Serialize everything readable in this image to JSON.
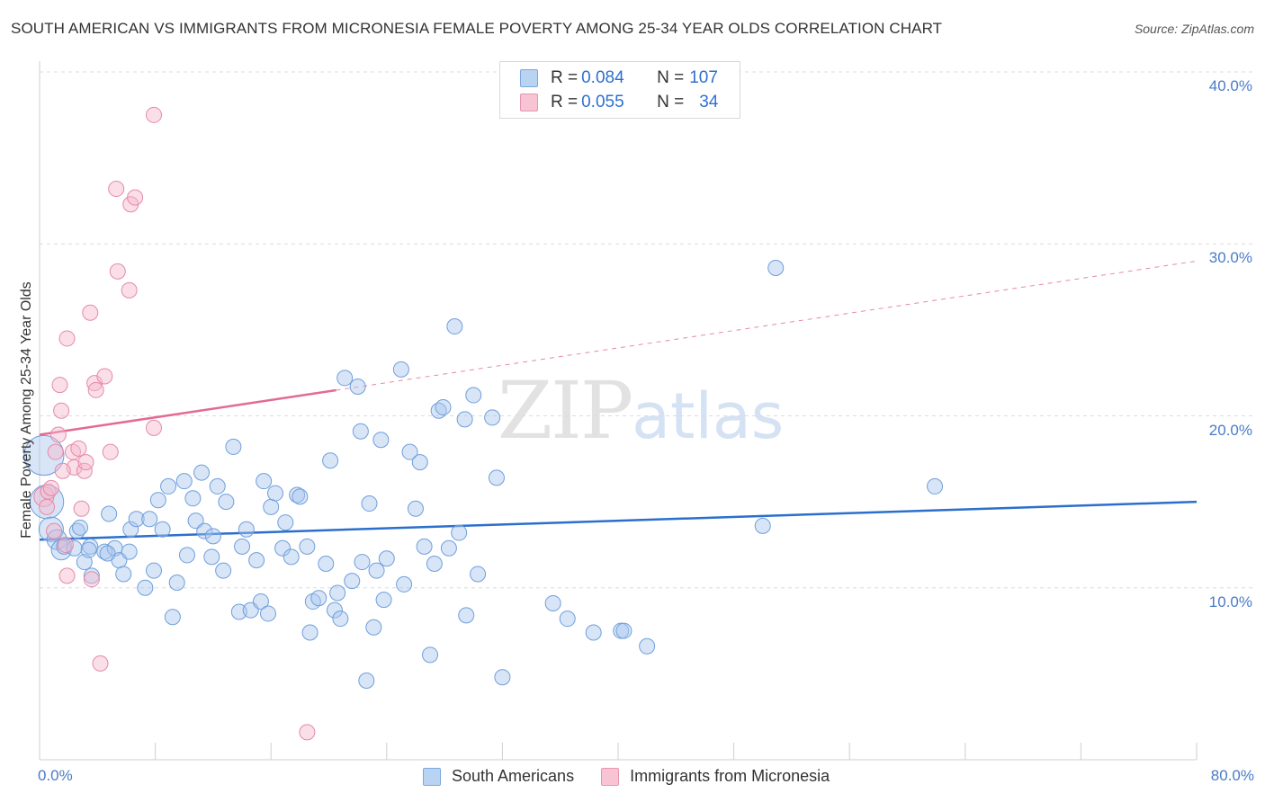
{
  "title": "SOUTH AMERICAN VS IMMIGRANTS FROM MICRONESIA FEMALE POVERTY AMONG 25-34 YEAR OLDS CORRELATION CHART",
  "source": "Source: ZipAtlas.com",
  "watermark": {
    "zip": "ZIP",
    "atlas": "atlas"
  },
  "legend": {
    "rows": [
      {
        "r_label": "R = ",
        "r_value": "0.084",
        "n_label": "N = ",
        "n_value": "107"
      },
      {
        "r_label": "R = ",
        "r_value": "0.055",
        "n_label": "N = ",
        "n_value": "34"
      }
    ]
  },
  "bottom_legend": [
    "South Americans",
    "Immigrants from Micronesia"
  ],
  "chart_data": {
    "type": "scatter",
    "title": "SOUTH AMERICAN VS IMMIGRANTS FROM MICRONESIA FEMALE POVERTY AMONG 25-34 YEAR OLDS CORRELATION CHART",
    "xlabel": "",
    "ylabel": "Female Poverty Among 25-34 Year Olds",
    "xlim": [
      0,
      80
    ],
    "ylim": [
      0,
      40
    ],
    "x_ticks": [
      "0.0%",
      "80.0%"
    ],
    "y_ticks": [
      {
        "value": 10,
        "label": "10.0%"
      },
      {
        "value": 20,
        "label": "20.0%"
      },
      {
        "value": 30,
        "label": "30.0%"
      },
      {
        "value": 40,
        "label": "40.0%"
      }
    ],
    "grid": "horizontal dashed",
    "series": [
      {
        "name": "South Americans",
        "color": "#a8c6ee",
        "stroke": "#6f9fdc",
        "line_color": "#2b6fcd",
        "trend": {
          "x0": 0,
          "y0": 12.8,
          "x1": 80,
          "y1": 15.0,
          "dashed_from": null
        },
        "points": [
          [
            0.3,
            17.7,
            2.6
          ],
          [
            0.5,
            15.0,
            2.2
          ],
          [
            0.8,
            13.4,
            1.6
          ],
          [
            1.2,
            12.8,
            1.3
          ],
          [
            1.5,
            12.2,
            1.3
          ],
          [
            1.7,
            12.4,
            1.0
          ],
          [
            2.4,
            12.3,
            1.0
          ],
          [
            2.6,
            13.3,
            1.0
          ],
          [
            2.8,
            13.5,
            1.0
          ],
          [
            3.1,
            11.5,
            1.0
          ],
          [
            3.5,
            12.4,
            1.0
          ],
          [
            3.6,
            10.7,
            1.0
          ],
          [
            3.4,
            12.2,
            1.0
          ],
          [
            4.5,
            12.1,
            1.0
          ],
          [
            4.8,
            14.3,
            1.0
          ],
          [
            5.2,
            12.3,
            1.0
          ],
          [
            5.5,
            11.6,
            1.0
          ],
          [
            5.8,
            10.8,
            1.0
          ],
          [
            6.2,
            12.1,
            1.0
          ],
          [
            6.3,
            13.4,
            1.0
          ],
          [
            6.7,
            14.0,
            1.0
          ],
          [
            7.3,
            10.0,
            1.0
          ],
          [
            7.6,
            14.0,
            1.0
          ],
          [
            7.9,
            11.0,
            1.0
          ],
          [
            8.2,
            15.1,
            1.0
          ],
          [
            8.5,
            13.4,
            1.0
          ],
          [
            8.9,
            15.9,
            1.0
          ],
          [
            9.2,
            8.3,
            1.0
          ],
          [
            9.5,
            10.3,
            1.0
          ],
          [
            10.0,
            16.2,
            1.0
          ],
          [
            10.2,
            11.9,
            1.0
          ],
          [
            10.6,
            15.2,
            1.0
          ],
          [
            10.8,
            13.9,
            1.0
          ],
          [
            11.2,
            16.7,
            1.0
          ],
          [
            11.4,
            13.3,
            1.0
          ],
          [
            11.9,
            11.8,
            1.0
          ],
          [
            12.0,
            13.0,
            1.0
          ],
          [
            12.3,
            15.9,
            1.0
          ],
          [
            12.7,
            11.0,
            1.0
          ],
          [
            12.9,
            15.0,
            1.0
          ],
          [
            13.4,
            18.2,
            1.0
          ],
          [
            13.8,
            8.6,
            1.0
          ],
          [
            14.0,
            12.4,
            1.0
          ],
          [
            14.3,
            13.4,
            1.0
          ],
          [
            14.6,
            8.7,
            1.0
          ],
          [
            15.0,
            11.6,
            1.0
          ],
          [
            15.3,
            9.2,
            1.0
          ],
          [
            15.5,
            16.2,
            1.0
          ],
          [
            15.8,
            8.5,
            1.0
          ],
          [
            16.0,
            14.7,
            1.0
          ],
          [
            16.3,
            15.5,
            1.0
          ],
          [
            16.8,
            12.3,
            1.0
          ],
          [
            17.0,
            13.8,
            1.0
          ],
          [
            17.4,
            11.8,
            1.0
          ],
          [
            17.8,
            15.4,
            1.0
          ],
          [
            18.0,
            15.3,
            1.0
          ],
          [
            18.5,
            12.4,
            1.0
          ],
          [
            18.7,
            7.4,
            1.0
          ],
          [
            18.9,
            9.2,
            1.0
          ],
          [
            19.3,
            9.4,
            1.0
          ],
          [
            19.8,
            11.4,
            1.0
          ],
          [
            20.1,
            17.4,
            1.0
          ],
          [
            20.4,
            8.7,
            1.0
          ],
          [
            20.6,
            9.7,
            1.0
          ],
          [
            20.8,
            8.2,
            1.0
          ],
          [
            21.1,
            22.2,
            1.0
          ],
          [
            21.6,
            10.4,
            1.0
          ],
          [
            22.0,
            21.7,
            1.0
          ],
          [
            22.2,
            19.1,
            1.0
          ],
          [
            22.3,
            11.5,
            1.0
          ],
          [
            22.6,
            4.6,
            1.0
          ],
          [
            22.8,
            14.9,
            1.0
          ],
          [
            23.1,
            7.7,
            1.0
          ],
          [
            23.3,
            11.0,
            1.0
          ],
          [
            23.6,
            18.6,
            1.0
          ],
          [
            23.8,
            9.3,
            1.0
          ],
          [
            24.0,
            11.7,
            1.0
          ],
          [
            25.0,
            22.7,
            1.0
          ],
          [
            25.2,
            10.2,
            1.0
          ],
          [
            25.6,
            17.9,
            1.0
          ],
          [
            26.0,
            14.6,
            1.0
          ],
          [
            26.3,
            17.3,
            1.0
          ],
          [
            26.6,
            12.4,
            1.0
          ],
          [
            27.0,
            6.1,
            1.0
          ],
          [
            27.3,
            11.4,
            1.0
          ],
          [
            27.6,
            20.3,
            1.0
          ],
          [
            27.9,
            20.5,
            1.0
          ],
          [
            28.3,
            12.3,
            1.0
          ],
          [
            28.7,
            25.2,
            1.0
          ],
          [
            29.0,
            13.2,
            1.0
          ],
          [
            29.4,
            19.8,
            1.0
          ],
          [
            29.5,
            8.4,
            1.0
          ],
          [
            30.0,
            21.2,
            1.0
          ],
          [
            30.3,
            10.8,
            1.0
          ],
          [
            31.3,
            19.9,
            1.0
          ],
          [
            31.6,
            16.4,
            1.0
          ],
          [
            32.0,
            4.8,
            1.0
          ],
          [
            35.5,
            9.1,
            1.0
          ],
          [
            36.5,
            8.2,
            1.0
          ],
          [
            38.3,
            7.4,
            1.0
          ],
          [
            40.2,
            7.5,
            1.0
          ],
          [
            40.4,
            7.5,
            1.0
          ],
          [
            42.0,
            6.6,
            1.0
          ],
          [
            50.0,
            13.6,
            1.0
          ],
          [
            50.9,
            28.6,
            1.0
          ],
          [
            61.9,
            15.9,
            1.0
          ],
          [
            4.7,
            12.0,
            1.0
          ]
        ]
      },
      {
        "name": "Immigrants from Micronesia",
        "color": "#f5b8cb",
        "stroke": "#e58aa8",
        "line_color": "#e36a93",
        "trend": {
          "x0": 0,
          "y0": 18.9,
          "x1": 80,
          "y1": 29.0,
          "dashed_from": 20.5
        },
        "points": [
          [
            0.3,
            15.3,
            1.3
          ],
          [
            0.5,
            14.7,
            1.0
          ],
          [
            0.6,
            15.6,
            1.0
          ],
          [
            0.8,
            15.8,
            1.0
          ],
          [
            1.0,
            13.3,
            1.0
          ],
          [
            1.1,
            17.9,
            1.0
          ],
          [
            1.4,
            21.8,
            1.0
          ],
          [
            1.5,
            20.3,
            1.0
          ],
          [
            1.3,
            18.9,
            1.0
          ],
          [
            1.9,
            24.5,
            1.0
          ],
          [
            1.9,
            10.7,
            1.0
          ],
          [
            1.8,
            12.5,
            1.0
          ],
          [
            2.3,
            17.9,
            1.0
          ],
          [
            2.4,
            17.0,
            1.0
          ],
          [
            2.7,
            18.1,
            1.0
          ],
          [
            2.9,
            14.6,
            1.0
          ],
          [
            3.1,
            16.8,
            1.0
          ],
          [
            3.2,
            17.3,
            1.0
          ],
          [
            3.5,
            26.0,
            1.0
          ],
          [
            3.6,
            10.5,
            1.0
          ],
          [
            3.8,
            21.9,
            1.0
          ],
          [
            3.9,
            21.5,
            1.0
          ],
          [
            4.2,
            5.6,
            1.0
          ],
          [
            4.5,
            22.3,
            1.0
          ],
          [
            4.9,
            17.9,
            1.0
          ],
          [
            5.3,
            33.2,
            1.0
          ],
          [
            5.4,
            28.4,
            1.0
          ],
          [
            6.2,
            27.3,
            1.0
          ],
          [
            6.3,
            32.3,
            1.0
          ],
          [
            6.6,
            32.7,
            1.0
          ],
          [
            7.9,
            37.5,
            1.0
          ],
          [
            7.9,
            19.3,
            1.0
          ],
          [
            18.5,
            1.6,
            1.0
          ],
          [
            1.6,
            16.8,
            1.0
          ]
        ]
      }
    ]
  }
}
